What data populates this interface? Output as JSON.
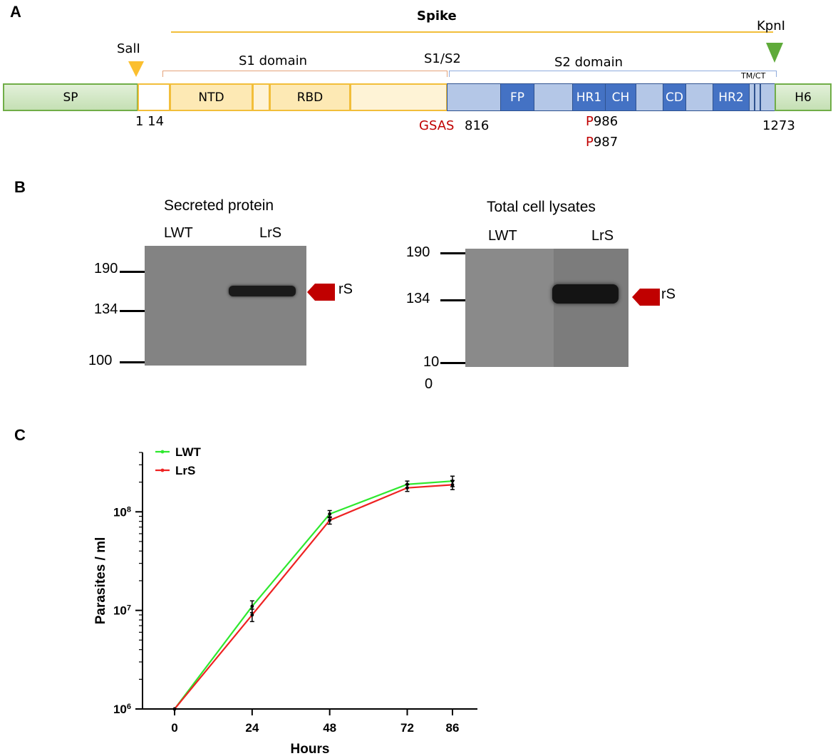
{
  "panel_a": {
    "letter": "A",
    "spike_label": "Spike",
    "sall_label": "SalI",
    "kpni_label": "KpnI",
    "s1_domain_label": "S1 domain",
    "s1s2_label": "S1/S2",
    "s2_domain_label": "S2 domain",
    "tmct_label": "TM/CT",
    "segments": {
      "sp": "SP",
      "ntd": "NTD",
      "rbd": "RBD",
      "fp": "FP",
      "hr1": "HR1",
      "ch": "CH",
      "cd": "CD",
      "hr2": "HR2",
      "h6": "H6"
    },
    "pos_1_14": "1 14",
    "gsas_red": "GS",
    "gsas_black": "AS",
    "pos_816": "816",
    "p986_red": "P",
    "p986_num": "986",
    "p987_red": "P",
    "p987_num": "987",
    "pos_1273": "1273",
    "colors": {
      "yellow": "#f2be3a",
      "blue": "#4472c4",
      "green": "#70ad47",
      "red": "#c00000"
    }
  },
  "panel_b": {
    "letter": "B",
    "left": {
      "title": "Secreted protein",
      "lane1": "LWT",
      "lane2": "LrS",
      "markers": [
        "190",
        "134",
        "100"
      ],
      "band_label": "rS"
    },
    "right": {
      "title": "Total cell lysates",
      "lane1": "LWT",
      "lane2": "LrS",
      "markers": [
        "190",
        "134",
        "10",
        "0"
      ],
      "band_label": "rS"
    }
  },
  "panel_c": {
    "letter": "C",
    "chart_data": {
      "type": "line",
      "x": [
        0,
        24,
        48,
        72,
        86
      ],
      "xlabel": "Hours",
      "ylabel": "Parasites / ml",
      "yscale": "log",
      "ylim": [
        1000000,
        400000000
      ],
      "yticks": [
        {
          "base": "10",
          "exp": "6",
          "value": 1000000
        },
        {
          "base": "10",
          "exp": "7",
          "value": 10000000
        },
        {
          "base": "10",
          "exp": "8",
          "value": 100000000
        }
      ],
      "xticks": [
        "0",
        "24",
        "48",
        "72",
        "86"
      ],
      "legend_position": "top-left",
      "series": [
        {
          "name": "LWT",
          "color": "#2ee82e",
          "values": [
            1000000,
            11000000,
            95000000,
            190000000,
            205000000
          ],
          "err": [
            0,
            1500000,
            8000000,
            15000000,
            25000000
          ]
        },
        {
          "name": "LrS",
          "color": "#ee2222",
          "values": [
            1000000,
            9000000,
            82000000,
            175000000,
            188000000
          ],
          "err": [
            0,
            1300000,
            7000000,
            14000000,
            20000000
          ]
        }
      ]
    }
  }
}
